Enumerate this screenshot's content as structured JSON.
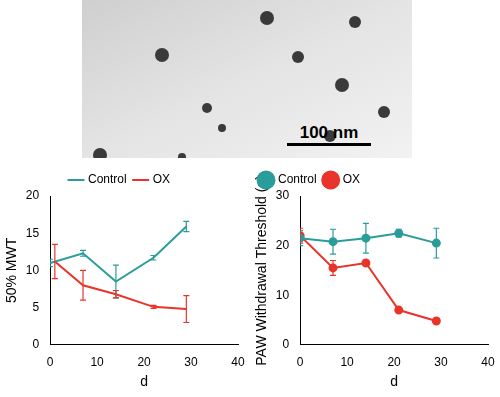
{
  "image": {
    "scale_bar": "100 nm"
  },
  "chart_data": [
    {
      "type": "line",
      "y_label": "50% MWT",
      "x_label": "d",
      "xlim": [
        0,
        40
      ],
      "xticks": [
        0,
        10,
        20,
        30,
        40
      ],
      "ylim": [
        0,
        20
      ],
      "yticks": [
        0,
        5,
        10,
        15,
        20
      ],
      "grid": false,
      "legend": "upper center",
      "series": [
        {
          "name": "Control",
          "color": "#2a9d9a",
          "marker": "none",
          "x": [
            0,
            7,
            14,
            22,
            29
          ],
          "values": [
            11.0,
            12.3,
            8.5,
            11.7,
            15.9
          ],
          "errors": [
            0.5,
            0.4,
            2.2,
            0.3,
            0.7
          ]
        },
        {
          "name": "OX",
          "color": "#e8342a",
          "marker": "none",
          "x": [
            1,
            7,
            14,
            22,
            29
          ],
          "values": [
            11.2,
            8.0,
            6.8,
            5.1,
            4.8
          ],
          "errors": [
            2.3,
            2.0,
            0.5,
            0.2,
            1.8
          ]
        }
      ]
    },
    {
      "type": "line",
      "y_label": "PAW Withdrawal Threshold (g)",
      "x_label": "d",
      "xlim": [
        0,
        40
      ],
      "xticks": [
        0,
        10,
        20,
        30,
        40
      ],
      "ylim": [
        0,
        30
      ],
      "yticks": [
        0,
        10,
        20,
        30
      ],
      "grid": false,
      "legend": "upper left",
      "series": [
        {
          "name": "Control",
          "color": "#2a9d9a",
          "marker": "circle",
          "x": [
            0,
            7,
            14,
            21,
            29
          ],
          "values": [
            21.5,
            20.8,
            21.5,
            22.5,
            20.5
          ],
          "errors": [
            1.5,
            2.5,
            3.0,
            0.8,
            3.0
          ]
        },
        {
          "name": "OX",
          "color": "#e8342a",
          "marker": "circle",
          "x": [
            0,
            7,
            14,
            21,
            29
          ],
          "values": [
            22.0,
            15.5,
            16.5,
            7.0,
            4.8
          ],
          "errors": [
            1.5,
            1.5,
            0.5,
            0.3,
            0.5
          ]
        }
      ]
    }
  ]
}
